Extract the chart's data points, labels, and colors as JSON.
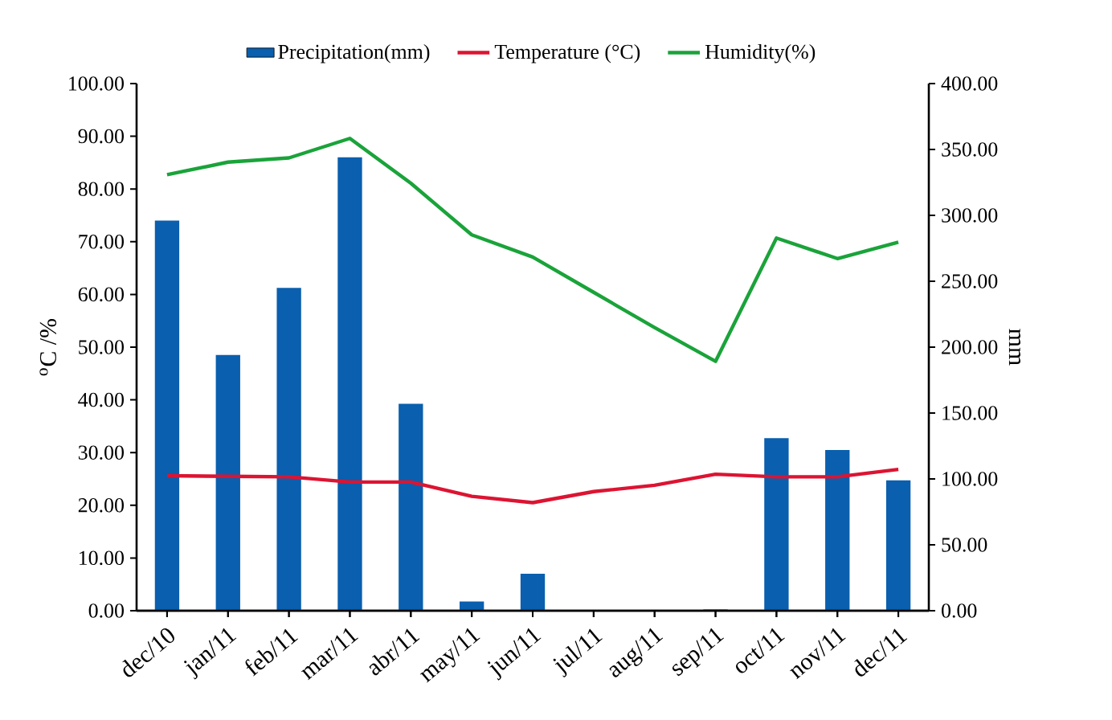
{
  "chart_data": {
    "type": "bar",
    "ylabel": "$^{o}$C /%",
    "y2label": "mm",
    "categories": [
      "dec/10",
      "jan/11",
      "feb/11",
      "mar/11",
      "abr/11",
      "may/11",
      "jun/11",
      "jul/11",
      "aug/11",
      "sep/11",
      "oct/11",
      "nov/11",
      "dec/11"
    ],
    "series": [
      {
        "name": "Precipitation(mm)",
        "axis": "y2",
        "color": "#0a5fae",
        "values": [
          296,
          194,
          245,
          344,
          157,
          7,
          28,
          0,
          0,
          1,
          131,
          122,
          99
        ]
      },
      {
        "name": "Temperature (°C)",
        "type": "line",
        "color": "#dc1432",
        "values": [
          25.6,
          25.5,
          25.4,
          24.4,
          24.4,
          21.7,
          20.5,
          22.6,
          23.8,
          25.9,
          25.4,
          25.4,
          26.8
        ]
      },
      {
        "name": "Humidity(%)",
        "type": "line",
        "color": "#1aa33a",
        "values": [
          82.7,
          85.1,
          85.9,
          89.6,
          81.1,
          71.3,
          67.1,
          60.4,
          53.7,
          47.3,
          70.7,
          66.8,
          69.9
        ]
      }
    ],
    "ylim": [
      0,
      100
    ],
    "yticks": [
      {
        "value": 0,
        "label": "0.00"
      },
      {
        "value": 10,
        "label": "10.00"
      },
      {
        "value": 20,
        "label": "20.00"
      },
      {
        "value": 30,
        "label": "30.00"
      },
      {
        "value": 40,
        "label": "40.00"
      },
      {
        "value": 50,
        "label": "50.00"
      },
      {
        "value": 60,
        "label": "60.00"
      },
      {
        "value": 70,
        "label": "70.00"
      },
      {
        "value": 80,
        "label": "80.00"
      },
      {
        "value": 90,
        "label": "90.00"
      },
      {
        "value": 100,
        "label": "100.00"
      }
    ],
    "y2lim": [
      0,
      400
    ],
    "y2ticks": [
      {
        "value": 0,
        "label": "0.00"
      },
      {
        "value": 50,
        "label": "50.00"
      },
      {
        "value": 100,
        "label": "100.00"
      },
      {
        "value": 150,
        "label": "150.00"
      },
      {
        "value": 200,
        "label": "200.00"
      },
      {
        "value": 250,
        "label": "250.00"
      },
      {
        "value": 300,
        "label": "300.00"
      },
      {
        "value": 350,
        "label": "350.00"
      },
      {
        "value": 400,
        "label": "400.00"
      }
    ],
    "legend": "top"
  }
}
